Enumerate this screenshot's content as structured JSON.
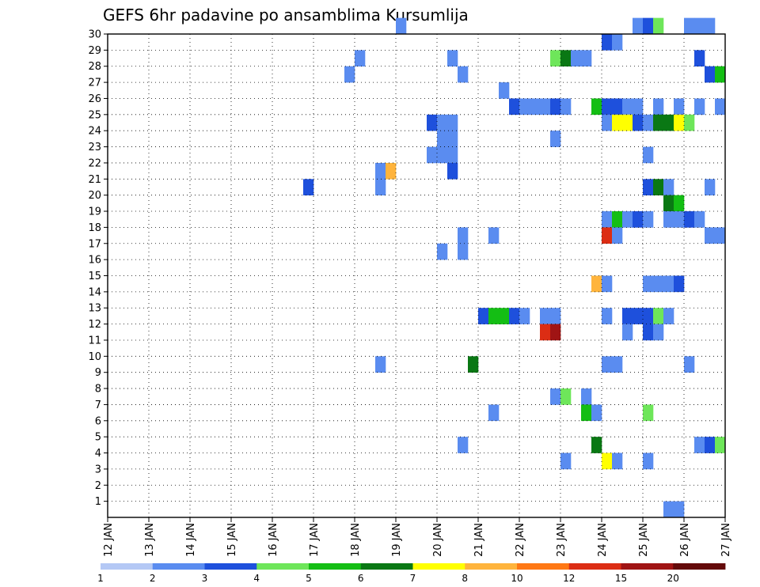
{
  "chart_data": {
    "type": "heatmap",
    "title": "GEFS 6hr padavine po ansamblima Kursumlija",
    "xlabel": "",
    "ylabel": "",
    "x_ticks": [
      "12 JAN",
      "13 JAN",
      "14 JAN",
      "15 JAN",
      "16 JAN",
      "17 JAN",
      "18 JAN",
      "19 JAN",
      "20 JAN",
      "21 JAN",
      "22 JAN",
      "23 JAN",
      "24 JAN",
      "25 JAN",
      "26 JAN",
      "27 JAN"
    ],
    "x_range_days": [
      0,
      15
    ],
    "y_ticks": [
      "1",
      "2",
      "3",
      "4",
      "5",
      "6",
      "7",
      "8",
      "9",
      "10",
      "11",
      "12",
      "13",
      "14",
      "15",
      "16",
      "17",
      "18",
      "19",
      "20",
      "21",
      "22",
      "23",
      "24",
      "25",
      "26",
      "27",
      "28",
      "29",
      "30"
    ],
    "y_range": [
      0,
      30
    ],
    "grid": true,
    "colorbar": {
      "labels": [
        "1",
        "2",
        "3",
        "4",
        "5",
        "6",
        "7",
        "8",
        "10",
        "12",
        "15",
        "20"
      ],
      "colors": [
        "#b4c8f5",
        "#5a8cf0",
        "#1e50dc",
        "#6ee65a",
        "#14be14",
        "#0a7814",
        "#ffff00",
        "#ffb43c",
        "#ff7814",
        "#dc2d14",
        "#a01414",
        "#640a0a"
      ]
    },
    "cells": [
      [
        7.0,
        30,
        1
      ],
      [
        12.75,
        30,
        1
      ],
      [
        13.0,
        30,
        2
      ],
      [
        13.25,
        30,
        3
      ],
      [
        14.0,
        30,
        1
      ],
      [
        14.25,
        30,
        1
      ],
      [
        14.5,
        30,
        1
      ],
      [
        12.0,
        29,
        2
      ],
      [
        12.25,
        29,
        1
      ],
      [
        6.0,
        28,
        1
      ],
      [
        8.25,
        28,
        1
      ],
      [
        10.75,
        28,
        3
      ],
      [
        11.0,
        28,
        5
      ],
      [
        11.25,
        28,
        1
      ],
      [
        11.5,
        28,
        1
      ],
      [
        14.25,
        28,
        2
      ],
      [
        5.75,
        27,
        1
      ],
      [
        8.5,
        27,
        1
      ],
      [
        14.5,
        27,
        2
      ],
      [
        14.75,
        27,
        4
      ],
      [
        9.5,
        26,
        1
      ],
      [
        9.75,
        25,
        2
      ],
      [
        10.0,
        25,
        1
      ],
      [
        10.25,
        25,
        1
      ],
      [
        10.5,
        25,
        1
      ],
      [
        10.75,
        25,
        2
      ],
      [
        11.0,
        25,
        1
      ],
      [
        11.75,
        25,
        4
      ],
      [
        12.0,
        25,
        2
      ],
      [
        12.25,
        25,
        2
      ],
      [
        12.5,
        25,
        1
      ],
      [
        12.75,
        25,
        1
      ],
      [
        13.25,
        25,
        1
      ],
      [
        13.75,
        25,
        1
      ],
      [
        14.25,
        25,
        1
      ],
      [
        14.75,
        25,
        1
      ],
      [
        7.75,
        24,
        2
      ],
      [
        8.0,
        24,
        1
      ],
      [
        8.25,
        24,
        1
      ],
      [
        12.0,
        24,
        1
      ],
      [
        12.25,
        24,
        6
      ],
      [
        12.5,
        24,
        6
      ],
      [
        12.75,
        24,
        2
      ],
      [
        13.0,
        24,
        1
      ],
      [
        13.25,
        24,
        5
      ],
      [
        13.5,
        24,
        5
      ],
      [
        13.75,
        24,
        6
      ],
      [
        14.0,
        24,
        3
      ],
      [
        8.0,
        23,
        1
      ],
      [
        8.25,
        23,
        1
      ],
      [
        10.75,
        23,
        1
      ],
      [
        7.75,
        22,
        1
      ],
      [
        8.0,
        22,
        1
      ],
      [
        8.25,
        22,
        1
      ],
      [
        13.0,
        22,
        1
      ],
      [
        6.5,
        21,
        1
      ],
      [
        6.75,
        21,
        7
      ],
      [
        8.25,
        21,
        2
      ],
      [
        4.75,
        20,
        2
      ],
      [
        6.5,
        20,
        1
      ],
      [
        13.0,
        20,
        2
      ],
      [
        13.25,
        20,
        5
      ],
      [
        13.5,
        20,
        1
      ],
      [
        14.5,
        20,
        1
      ],
      [
        13.5,
        19,
        5
      ],
      [
        13.75,
        19,
        4
      ],
      [
        12.0,
        18,
        1
      ],
      [
        12.25,
        18,
        4
      ],
      [
        12.5,
        18,
        1
      ],
      [
        12.75,
        18,
        2
      ],
      [
        13.0,
        18,
        1
      ],
      [
        13.5,
        18,
        1
      ],
      [
        13.75,
        18,
        1
      ],
      [
        14.0,
        18,
        2
      ],
      [
        14.25,
        18,
        1
      ],
      [
        8.5,
        17,
        1
      ],
      [
        9.25,
        17,
        1
      ],
      [
        12.0,
        17,
        9
      ],
      [
        12.25,
        17,
        1
      ],
      [
        14.5,
        17,
        1
      ],
      [
        14.75,
        17,
        1
      ],
      [
        8.0,
        16,
        1
      ],
      [
        8.5,
        16,
        1
      ],
      [
        11.75,
        14,
        7
      ],
      [
        12.0,
        14,
        1
      ],
      [
        13.0,
        14,
        1
      ],
      [
        13.25,
        14,
        1
      ],
      [
        13.5,
        14,
        1
      ],
      [
        13.75,
        14,
        2
      ],
      [
        9.0,
        12,
        2
      ],
      [
        9.25,
        12,
        4
      ],
      [
        9.5,
        12,
        4
      ],
      [
        9.75,
        12,
        2
      ],
      [
        10.0,
        12,
        1
      ],
      [
        10.5,
        12,
        1
      ],
      [
        10.75,
        12,
        1
      ],
      [
        12.0,
        12,
        1
      ],
      [
        12.5,
        12,
        2
      ],
      [
        12.75,
        12,
        2
      ],
      [
        13.0,
        12,
        2
      ],
      [
        13.25,
        12,
        3
      ],
      [
        13.5,
        12,
        1
      ],
      [
        10.5,
        11,
        9
      ],
      [
        10.75,
        11,
        10
      ],
      [
        12.5,
        11,
        1
      ],
      [
        13.0,
        11,
        2
      ],
      [
        13.25,
        11,
        1
      ],
      [
        6.5,
        9,
        1
      ],
      [
        8.75,
        9,
        5
      ],
      [
        12.0,
        9,
        1
      ],
      [
        12.25,
        9,
        1
      ],
      [
        14.0,
        9,
        1
      ],
      [
        10.75,
        7,
        1
      ],
      [
        11.0,
        7,
        3
      ],
      [
        11.5,
        7,
        1
      ],
      [
        9.25,
        6,
        1
      ],
      [
        11.5,
        6,
        4
      ],
      [
        11.75,
        6,
        1
      ],
      [
        13.0,
        6,
        3
      ],
      [
        8.5,
        4,
        1
      ],
      [
        11.75,
        4,
        5
      ],
      [
        14.25,
        4,
        1
      ],
      [
        14.5,
        4,
        2
      ],
      [
        14.75,
        4,
        3
      ],
      [
        11.0,
        3,
        1
      ],
      [
        12.0,
        3,
        6
      ],
      [
        12.25,
        3,
        1
      ],
      [
        13.0,
        3,
        1
      ],
      [
        13.5,
        0,
        1
      ],
      [
        13.75,
        0,
        1
      ]
    ]
  }
}
